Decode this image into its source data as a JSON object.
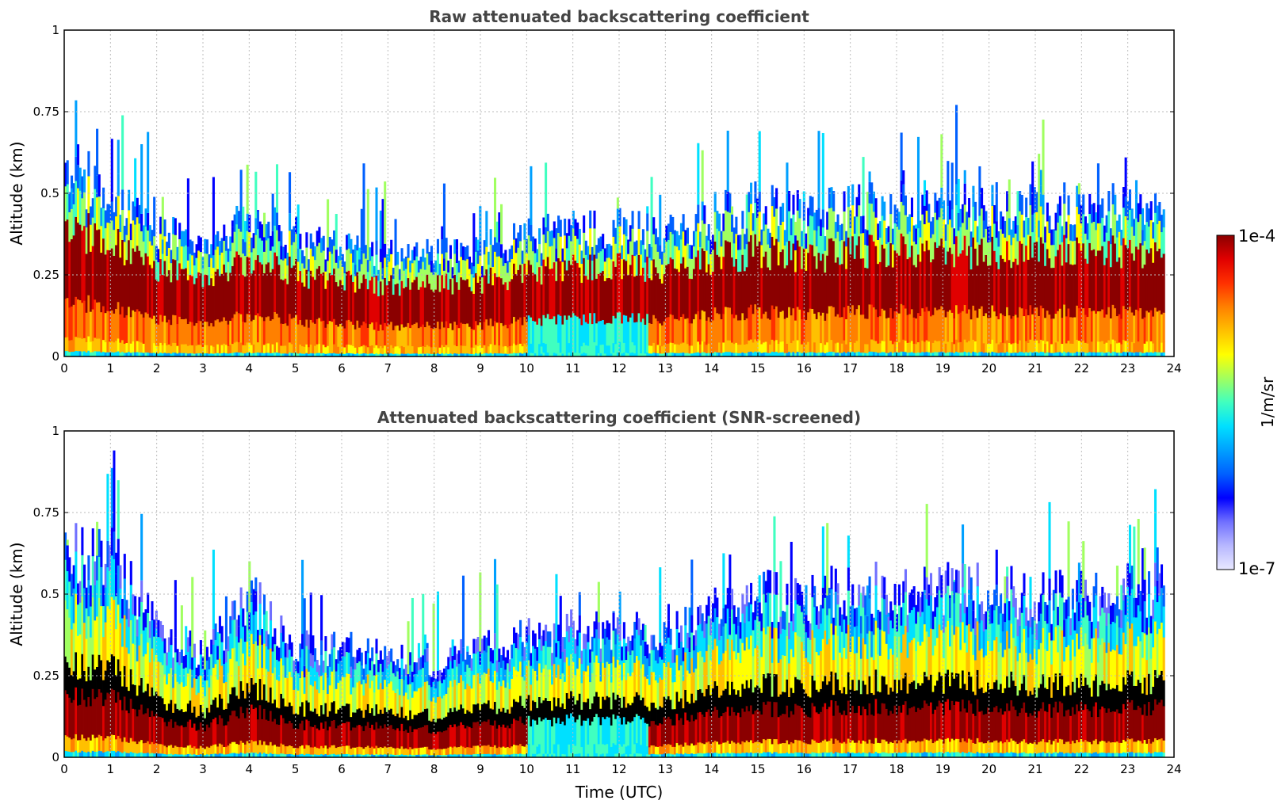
{
  "chart_data": [
    {
      "type": "heatmap",
      "title": "Raw attenuated backscattering coefficient",
      "ylabel": "Altitude (km)",
      "xlabel": "",
      "xlim": [
        0,
        24
      ],
      "ylim": [
        0,
        1
      ],
      "x_ticks": [
        "0",
        "1",
        "2",
        "3",
        "4",
        "5",
        "6",
        "7",
        "8",
        "9",
        "10",
        "11",
        "12",
        "13",
        "14",
        "15",
        "16",
        "17",
        "18",
        "19",
        "20",
        "21",
        "22",
        "23",
        "24"
      ],
      "y_ticks": [
        "0",
        "0.25",
        "0.5",
        "0.75",
        "1"
      ],
      "grid": true,
      "screened": false,
      "boundary_layer_top_km": {
        "time_utc": [
          0,
          1,
          2,
          3,
          4,
          5,
          6,
          7,
          8,
          9,
          10,
          11,
          12,
          13,
          14,
          15,
          16,
          17,
          18,
          19,
          20,
          21,
          22,
          23,
          23.8
        ],
        "altitude": [
          0.55,
          0.5,
          0.38,
          0.32,
          0.42,
          0.36,
          0.32,
          0.3,
          0.3,
          0.32,
          0.36,
          0.38,
          0.38,
          0.36,
          0.42,
          0.45,
          0.42,
          0.45,
          0.45,
          0.45,
          0.45,
          0.45,
          0.45,
          0.45,
          0.45
        ]
      }
    },
    {
      "type": "heatmap",
      "title": "Attenuated backscattering coefficient (SNR-screened)",
      "ylabel": "Altitude (km)",
      "xlabel": "Time (UTC)",
      "xlim": [
        0,
        24
      ],
      "ylim": [
        0,
        1
      ],
      "x_ticks": [
        "0",
        "1",
        "2",
        "3",
        "4",
        "5",
        "6",
        "7",
        "8",
        "9",
        "10",
        "11",
        "12",
        "13",
        "14",
        "15",
        "16",
        "17",
        "18",
        "19",
        "20",
        "21",
        "22",
        "23",
        "24"
      ],
      "y_ticks": [
        "0",
        "0.25",
        "0.5",
        "0.75",
        "1"
      ],
      "grid": true,
      "screened": true,
      "boundary_layer_top_km": {
        "time_utc": [
          0,
          1,
          2,
          3,
          4,
          5,
          6,
          7,
          8,
          9,
          10,
          11,
          12,
          13,
          14,
          15,
          16,
          17,
          18,
          19,
          20,
          21,
          22,
          23,
          23.8
        ],
        "altitude": [
          0.6,
          0.6,
          0.38,
          0.3,
          0.48,
          0.33,
          0.32,
          0.3,
          0.28,
          0.34,
          0.36,
          0.38,
          0.38,
          0.36,
          0.45,
          0.48,
          0.48,
          0.5,
          0.5,
          0.5,
          0.5,
          0.48,
          0.48,
          0.5,
          0.5
        ]
      }
    }
  ],
  "colorbar": {
    "label": "1/m/sr",
    "max_label": "1e-4",
    "min_label": "1e-7",
    "scale": "log",
    "colors": [
      "#e8e8ff",
      "#b8b8ff",
      "#7070ff",
      "#0000ff",
      "#0060ff",
      "#00a0ff",
      "#00e0ff",
      "#40ffc0",
      "#a0ff60",
      "#ffff00",
      "#ffc000",
      "#ff8000",
      "#ff3000",
      "#e00000",
      "#8b0000"
    ]
  }
}
